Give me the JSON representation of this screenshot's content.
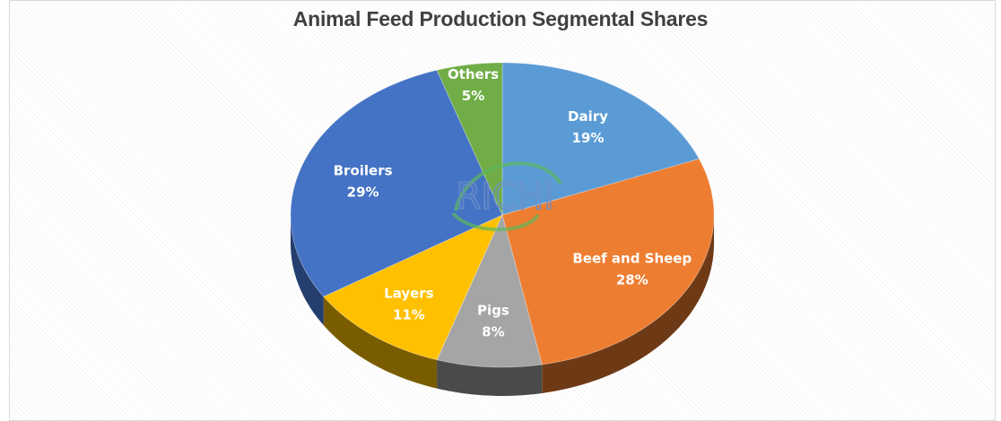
{
  "chart_data": {
    "type": "pie",
    "title": "Animal Feed Production Segmental Shares",
    "slices": [
      {
        "name": "Dairy",
        "value": 19,
        "label": "19%",
        "color": "#5b9bd5",
        "side_color": "#3a6e9e"
      },
      {
        "name": "Beef and Sheep",
        "value": 28,
        "label": "28%",
        "color": "#ed7d31",
        "side_color": "#6e3a16"
      },
      {
        "name": "Pigs",
        "value": 8,
        "label": "8%",
        "color": "#a5a5a5",
        "side_color": "#4a4a4a"
      },
      {
        "name": "Layers",
        "value": 11,
        "label": "11%",
        "color": "#ffc000",
        "side_color": "#7a5c00"
      },
      {
        "name": "Broilers",
        "value": 29,
        "label": "29%",
        "color": "#4472c4",
        "side_color": "#243e6e"
      },
      {
        "name": "Others",
        "value": 5,
        "label": "5%",
        "color": "#70ad47",
        "side_color": "#3c6126"
      }
    ]
  },
  "watermark": {
    "text": "RICHi",
    "color": "#4a78c2",
    "accent_color": "#5cb85c"
  }
}
